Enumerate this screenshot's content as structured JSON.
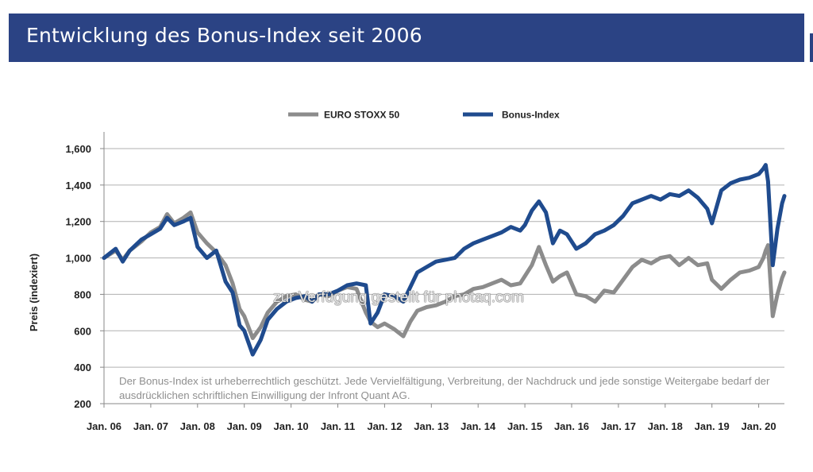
{
  "header": {
    "title": "Entwicklung des Bonus-Index seit 2006"
  },
  "watermark": "zur Verfügung gestellt für photaq.com",
  "copyright_note": "Der Bonus-Index ist urheberrechtlich geschützt. Jede Vervielfältigung, Verbreitung, der Nachdruck und jede sonstige Weitergabe bedarf der ausdrücklichen schriftlichen Einwilligung der Infront Quant AG.",
  "colors": {
    "banner": "#2b4384",
    "euro_stoxx": "#8c8c8c",
    "bonus_index": "#1f4b8e",
    "grid": "#b0b0b0"
  },
  "chart_data": {
    "type": "line",
    "title": "",
    "ylabel": "Preis (indexiert)",
    "xlabel": "",
    "ylim": [
      200,
      1650
    ],
    "xlim": [
      2006.0,
      2020.55
    ],
    "grid": "horizontal",
    "legend_position": "top",
    "y_ticks": [
      200,
      400,
      600,
      800,
      1000,
      1200,
      1400,
      1600
    ],
    "y_tick_labels": [
      "200",
      "400",
      "600",
      "800",
      "1,000",
      "1,200",
      "1,400",
      "1,600"
    ],
    "x_tick_labels": [
      "Jan. 06",
      "Jan. 07",
      "Jan. 08",
      "Jan. 09",
      "Jan. 10",
      "Jan. 11",
      "Jan. 12",
      "Jan. 13",
      "Jan. 14",
      "Jan. 15",
      "Jan. 16",
      "Jan. 17",
      "Jan. 18",
      "Jan. 19",
      "Jan. 20"
    ],
    "x_tick_years": [
      2006,
      2007,
      2008,
      2009,
      2010,
      2011,
      2012,
      2013,
      2014,
      2015,
      2016,
      2017,
      2018,
      2019,
      2020
    ],
    "series": [
      {
        "name": "EURO STOXX 50",
        "color": "#8c8c8c",
        "x": [
          2006.0,
          2006.25,
          2006.4,
          2006.55,
          2006.8,
          2007.0,
          2007.2,
          2007.35,
          2007.5,
          2007.7,
          2007.85,
          2008.0,
          2008.2,
          2008.4,
          2008.6,
          2008.75,
          2008.9,
          2009.0,
          2009.18,
          2009.35,
          2009.5,
          2009.7,
          2009.9,
          2010.1,
          2010.3,
          2010.45,
          2010.6,
          2010.8,
          2011.0,
          2011.2,
          2011.4,
          2011.6,
          2011.7,
          2011.85,
          2012.0,
          2012.2,
          2012.4,
          2012.55,
          2012.7,
          2012.9,
          2013.1,
          2013.3,
          2013.5,
          2013.7,
          2013.9,
          2014.1,
          2014.3,
          2014.5,
          2014.7,
          2014.9,
          2015.0,
          2015.15,
          2015.3,
          2015.45,
          2015.6,
          2015.75,
          2015.9,
          2016.1,
          2016.3,
          2016.5,
          2016.7,
          2016.9,
          2017.1,
          2017.3,
          2017.5,
          2017.7,
          2017.9,
          2018.1,
          2018.3,
          2018.5,
          2018.7,
          2018.9,
          2019.0,
          2019.2,
          2019.4,
          2019.6,
          2019.8,
          2020.0,
          2020.1,
          2020.15,
          2020.2,
          2020.3,
          2020.4,
          2020.5,
          2020.55
        ],
        "y": [
          1000,
          1040,
          990,
          1040,
          1090,
          1140,
          1170,
          1240,
          1190,
          1220,
          1250,
          1140,
          1080,
          1030,
          960,
          860,
          720,
          680,
          560,
          620,
          700,
          760,
          790,
          800,
          770,
          760,
          800,
          790,
          820,
          840,
          830,
          700,
          650,
          620,
          640,
          610,
          570,
          650,
          710,
          730,
          740,
          760,
          790,
          800,
          830,
          840,
          860,
          880,
          850,
          860,
          900,
          960,
          1060,
          960,
          870,
          900,
          920,
          800,
          790,
          760,
          820,
          810,
          880,
          950,
          990,
          970,
          1000,
          1010,
          960,
          1000,
          960,
          970,
          880,
          830,
          880,
          920,
          930,
          950,
          1000,
          1040,
          1070,
          680,
          800,
          890,
          920
        ]
      },
      {
        "name": "Bonus-Index",
        "color": "#1f4b8e",
        "x": [
          2006.0,
          2006.25,
          2006.4,
          2006.55,
          2006.8,
          2007.0,
          2007.2,
          2007.35,
          2007.5,
          2007.7,
          2007.85,
          2008.0,
          2008.2,
          2008.4,
          2008.6,
          2008.75,
          2008.9,
          2009.0,
          2009.18,
          2009.35,
          2009.5,
          2009.7,
          2009.9,
          2010.1,
          2010.3,
          2010.45,
          2010.6,
          2010.8,
          2011.0,
          2011.2,
          2011.4,
          2011.6,
          2011.7,
          2011.85,
          2012.0,
          2012.2,
          2012.4,
          2012.55,
          2012.7,
          2012.9,
          2013.1,
          2013.3,
          2013.5,
          2013.7,
          2013.9,
          2014.1,
          2014.3,
          2014.5,
          2014.7,
          2014.9,
          2015.0,
          2015.15,
          2015.3,
          2015.45,
          2015.6,
          2015.75,
          2015.9,
          2016.1,
          2016.3,
          2016.5,
          2016.7,
          2016.9,
          2017.1,
          2017.3,
          2017.5,
          2017.7,
          2017.9,
          2018.1,
          2018.3,
          2018.5,
          2018.7,
          2018.9,
          2019.0,
          2019.2,
          2019.4,
          2019.6,
          2019.8,
          2020.0,
          2020.1,
          2020.15,
          2020.2,
          2020.3,
          2020.4,
          2020.5,
          2020.55
        ],
        "y": [
          1000,
          1050,
          980,
          1040,
          1100,
          1130,
          1160,
          1220,
          1180,
          1200,
          1220,
          1060,
          1000,
          1040,
          870,
          810,
          630,
          600,
          470,
          550,
          660,
          720,
          760,
          780,
          790,
          760,
          800,
          800,
          820,
          850,
          860,
          850,
          640,
          700,
          800,
          790,
          760,
          840,
          920,
          950,
          980,
          990,
          1000,
          1050,
          1080,
          1100,
          1120,
          1140,
          1170,
          1150,
          1180,
          1260,
          1310,
          1250,
          1080,
          1150,
          1130,
          1050,
          1080,
          1130,
          1150,
          1180,
          1230,
          1300,
          1320,
          1340,
          1320,
          1350,
          1340,
          1370,
          1330,
          1270,
          1190,
          1370,
          1410,
          1430,
          1440,
          1460,
          1490,
          1510,
          1420,
          960,
          1160,
          1300,
          1340
        ]
      }
    ]
  }
}
